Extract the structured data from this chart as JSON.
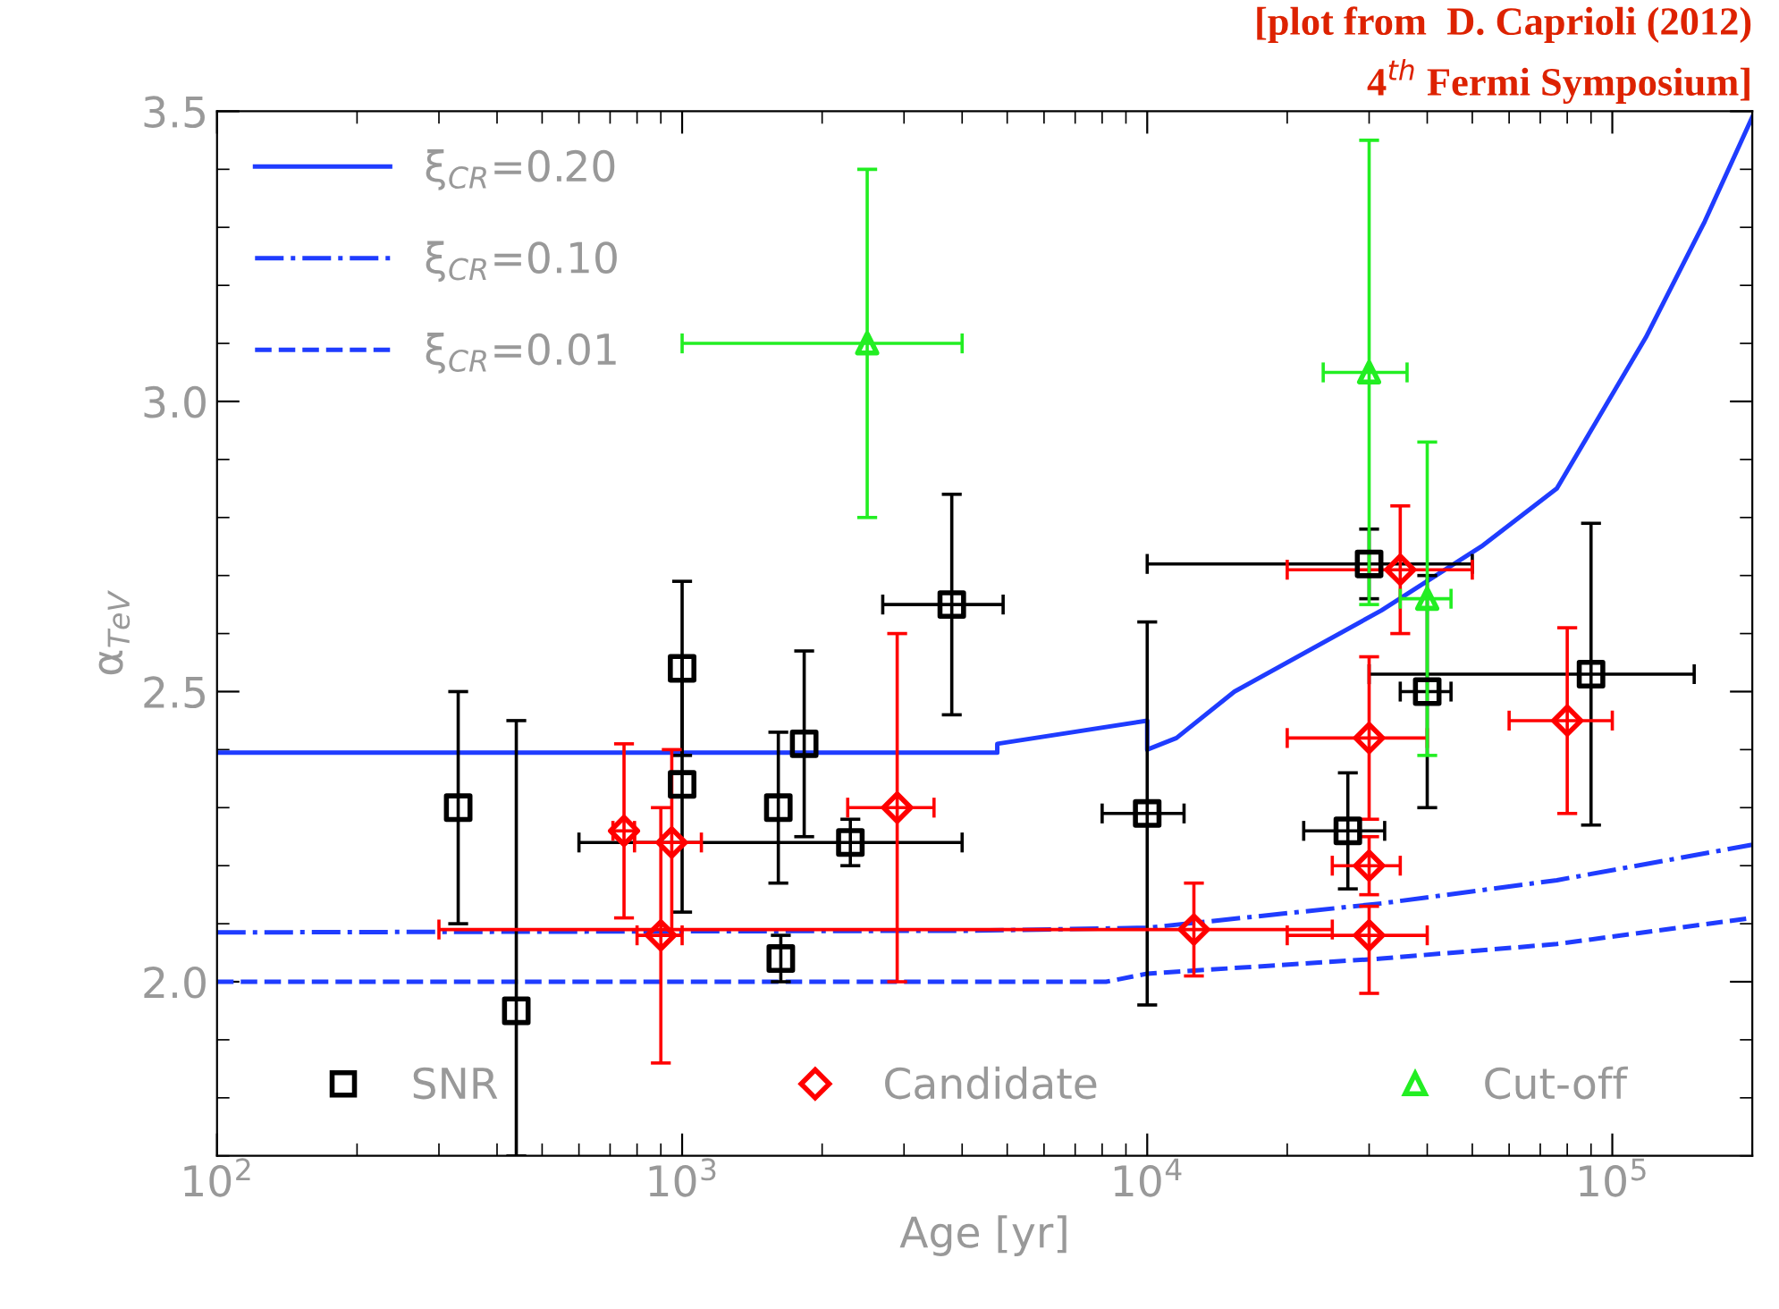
{
  "chart_data": {
    "type": "scatter",
    "xlabel": "Age [yr]",
    "ylabel": "α$_{TeV}$",
    "annotations": [
      "[plot from  D. Caprioli (2012)",
      "4$^{th}$ Fermi Symposium]"
    ],
    "log": "x",
    "xlim": [
      100,
      200000
    ],
    "xticks": [
      {
        "value": 100,
        "label": "10$^{2}$"
      },
      {
        "value": 1000,
        "label": "10$^{3}$"
      },
      {
        "value": 10000,
        "label": "10$^{4}$"
      },
      {
        "value": 100000,
        "label": "10$^{5}$"
      }
    ],
    "ylim": [
      1.7,
      3.5
    ],
    "yticks": [
      {
        "value": 2,
        "label": "2.0"
      },
      {
        "value": 2.5,
        "label": "2.5"
      },
      {
        "value": 3,
        "label": "3.0"
      },
      {
        "value": 3.5,
        "label": "3.5"
      }
    ],
    "grid": false,
    "legend": "top left",
    "series": [
      {
        "type": "line",
        "name": "ξ$_{CR}$=0.20",
        "color": "#1f3cff",
        "line_style": "solid",
        "x": [
          100,
          4760,
          4760,
          10000,
          10000,
          11560,
          15400,
          31900,
          52300,
          76000,
          118000,
          158000,
          200000
        ],
        "values": [
          2.395,
          2.395,
          2.41,
          2.45,
          2.4,
          2.42,
          2.5,
          2.64,
          2.75,
          2.85,
          3.11,
          3.31,
          3.49
        ]
      },
      {
        "type": "line",
        "name": "ξ$_{CR}$=0.10",
        "color": "#1f3cff",
        "line_style": "dashdot",
        "x": [
          100,
          4180,
          10000,
          31900,
          76000,
          200000
        ],
        "values": [
          2.085,
          2.088,
          2.093,
          2.135,
          2.175,
          2.236
        ]
      },
      {
        "type": "line",
        "name": "ξ$_{CR}$=0.01",
        "color": "#1f3cff",
        "line_style": "dashed",
        "x": [
          100,
          8160,
          10000,
          31900,
          76000,
          200000
        ],
        "values": [
          2.0,
          2.0,
          2.014,
          2.04,
          2.065,
          2.11
        ]
      },
      {
        "name": "SNR",
        "color": "#000000",
        "marker": "square",
        "x": [
          330,
          440,
          1000,
          1000,
          1610,
          1830,
          1630,
          2300,
          3800,
          10000,
          27000,
          30000,
          40000,
          90000
        ],
        "values": [
          2.3,
          1.95,
          2.54,
          2.34,
          2.3,
          2.41,
          2.04,
          2.24,
          2.65,
          2.29,
          2.26,
          2.72,
          2.5,
          2.53
        ],
        "errors": [
          [
            2.1,
            2.5
          ],
          [
            1.7,
            2.45
          ],
          [
            2.39,
            2.69
          ],
          [
            2.12,
            2.56
          ],
          [
            2.17,
            2.43
          ],
          [
            2.25,
            2.57
          ],
          [
            2.0,
            2.08
          ],
          [
            2.2,
            2.28
          ],
          [
            2.46,
            2.84
          ],
          [
            1.96,
            2.62
          ],
          [
            2.16,
            2.36
          ],
          [
            2.66,
            2.78
          ],
          [
            2.3,
            2.7
          ],
          [
            2.27,
            2.79
          ]
        ],
        "xerrors": [
          null,
          null,
          null,
          null,
          null,
          null,
          null,
          [
            600,
            4000
          ],
          [
            2700,
            4900
          ],
          [
            8000,
            12000
          ],
          [
            21700,
            32400
          ],
          [
            10000,
            50000
          ],
          [
            35000,
            45000
          ],
          [
            30000,
            150000
          ]
        ]
      },
      {
        "name": "Candidate",
        "color": "#ff0000",
        "marker": "diamond",
        "x": [
          750,
          950,
          900,
          12600,
          2900,
          30000,
          30000,
          30000,
          35000,
          80000
        ],
        "values": [
          2.26,
          2.24,
          2.08,
          2.09,
          2.3,
          2.42,
          2.2,
          2.08,
          2.71,
          2.45
        ],
        "errors": [
          [
            2.11,
            2.41
          ],
          [
            2.08,
            2.4
          ],
          [
            1.86,
            2.3
          ],
          [
            2.01,
            2.17
          ],
          [
            2.0,
            2.6
          ],
          [
            2.28,
            2.56
          ],
          [
            2.15,
            2.25
          ],
          [
            1.98,
            2.13
          ],
          [
            2.6,
            2.82
          ],
          [
            2.29,
            2.61
          ]
        ],
        "xerrors": [
          [
            710,
            790
          ],
          [
            790,
            1100
          ],
          [
            800,
            1000
          ],
          [
            300,
            25000
          ],
          [
            2270,
            3480
          ],
          [
            20000,
            40000
          ],
          [
            25000,
            35000
          ],
          [
            20000,
            40000
          ],
          [
            20000,
            50000
          ],
          [
            60000,
            100000
          ]
        ]
      },
      {
        "name": "Cut-off",
        "color": "#22ee22",
        "marker": "triangle",
        "x": [
          2500,
          30000,
          40000
        ],
        "values": [
          3.1,
          3.05,
          2.66
        ],
        "errors": [
          [
            2.8,
            3.4
          ],
          [
            2.65,
            3.45
          ],
          [
            2.39,
            2.93
          ]
        ],
        "xerrors": [
          [
            1000,
            4000
          ],
          [
            23900,
            36200
          ],
          [
            35000,
            45000
          ]
        ]
      }
    ]
  }
}
